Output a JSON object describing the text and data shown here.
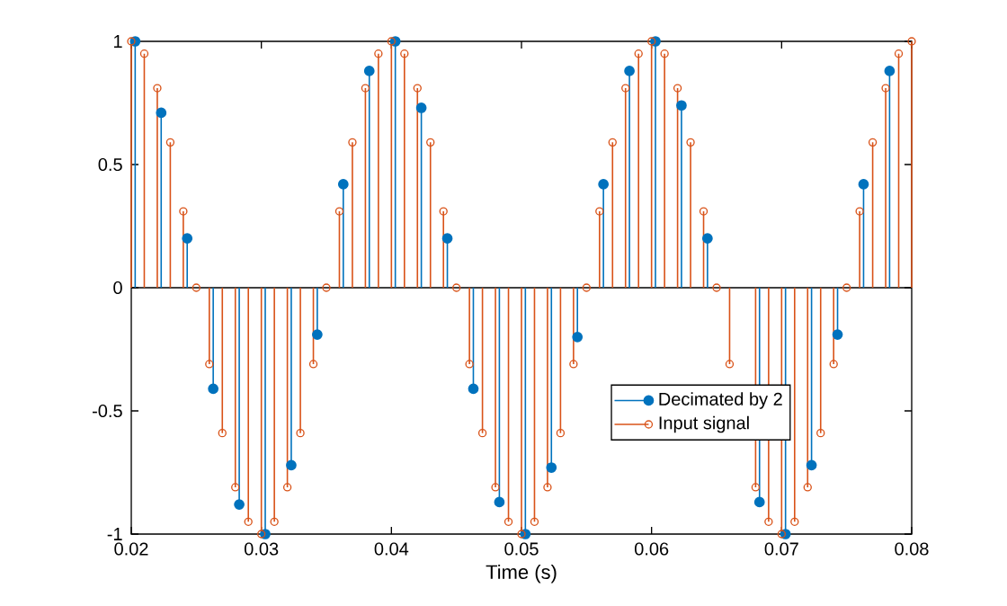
{
  "chart_data": {
    "type": "lollipop",
    "xlabel": "Time (s)",
    "xlim": [
      0.02,
      0.08
    ],
    "xticks": [
      0.02,
      0.03,
      0.04,
      0.05,
      0.06,
      0.07,
      0.08
    ],
    "ylim": [
      -1,
      1
    ],
    "yticks": [
      -1,
      -0.5,
      0,
      0.5,
      1
    ],
    "legend": "bottom right",
    "marker": "circle",
    "grid": false,
    "ref_lines": [
      {
        "axis": "y",
        "value": 0,
        "color": "#000000"
      }
    ],
    "series": [
      {
        "name": "Decimated by 2",
        "color": "#0072bd",
        "x": [
          0.0203,
          0.0223,
          0.0243,
          0.0263,
          0.0283,
          0.0303,
          0.0323,
          0.0343,
          0.0363,
          0.0383,
          0.0403,
          0.0423,
          0.0443,
          0.0463,
          0.0483,
          0.0503,
          0.0523,
          0.0543,
          0.0563,
          0.0583,
          0.0603,
          0.0623,
          0.0643,
          0.0663,
          0.0683,
          0.0703,
          0.0723,
          0.0743,
          0.0763,
          0.0783
        ],
        "values": [
          1,
          0.71,
          0.2,
          -0.41,
          -0.88,
          -1,
          -0.72,
          -0.19,
          0.42,
          0.88,
          1,
          0.73,
          0.2,
          -0.41,
          -0.87,
          -1,
          -0.73,
          -0.2,
          0.42,
          0.88,
          1,
          0.74,
          0.2,
          null,
          -0.87,
          -1,
          -0.72,
          -0.19,
          0.42,
          0.88
        ]
      },
      {
        "name": "Input signal",
        "color": "#d95319",
        "x": [
          0.02,
          0.021,
          0.022,
          0.023,
          0.024,
          0.025,
          0.026,
          0.027,
          0.028,
          0.029,
          0.03,
          0.031,
          0.032,
          0.033,
          0.034,
          0.035,
          0.036,
          0.037,
          0.038,
          0.039,
          0.04,
          0.041,
          0.042,
          0.043,
          0.044,
          0.045,
          0.046,
          0.047,
          0.048,
          0.049,
          0.05,
          0.051,
          0.052,
          0.053,
          0.054,
          0.055,
          0.056,
          0.057,
          0.058,
          0.059,
          0.06,
          0.061,
          0.062,
          0.063,
          0.064,
          0.065,
          0.066,
          0.067,
          0.068,
          0.069,
          0.07,
          0.071,
          0.072,
          0.073,
          0.074,
          0.075,
          0.076,
          0.077,
          0.078,
          0.079,
          0.08
        ],
        "values": [
          1,
          0.95,
          0.81,
          0.59,
          0.31,
          0,
          -0.31,
          -0.59,
          -0.81,
          -0.95,
          -1,
          -0.95,
          -0.81,
          -0.59,
          -0.31,
          0,
          0.31,
          0.59,
          0.81,
          0.95,
          1,
          0.95,
          0.81,
          0.59,
          0.31,
          0,
          -0.31,
          -0.59,
          -0.81,
          -0.95,
          -1,
          -0.95,
          -0.81,
          -0.59,
          -0.31,
          0,
          0.31,
          0.59,
          0.81,
          0.95,
          1,
          0.95,
          0.81,
          0.59,
          0.31,
          0,
          -0.31,
          null,
          -0.81,
          -0.95,
          -1,
          -0.95,
          -0.81,
          -0.59,
          -0.31,
          0,
          0.31,
          0.59,
          0.81,
          0.95,
          1
        ]
      }
    ]
  }
}
